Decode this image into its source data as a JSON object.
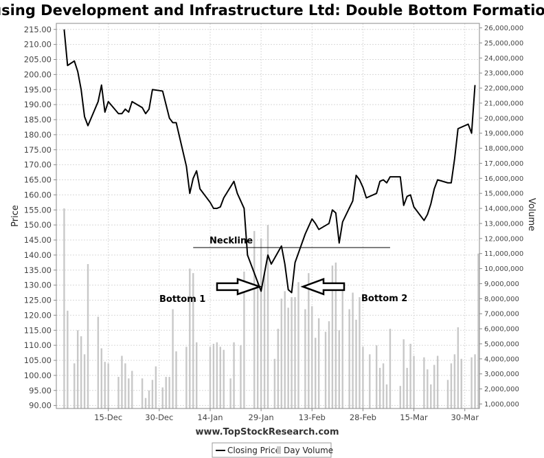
{
  "chart_data": {
    "type": "line",
    "title": "Housing Development and Infrastructure Ltd: Double Bottom Formation",
    "ylabel": "Price",
    "y2label": "Volume",
    "source": "www.TopStockResearch.com",
    "ylim": [
      89,
      217
    ],
    "y2lim": [
      700000,
      26300000
    ],
    "y_ticks": [
      "90.00",
      "95.00",
      "100.00",
      "105.00",
      "110.00",
      "115.00",
      "120.00",
      "125.00",
      "130.00",
      "135.00",
      "140.00",
      "145.00",
      "150.00",
      "155.00",
      "160.00",
      "165.00",
      "170.00",
      "175.00",
      "180.00",
      "185.00",
      "190.00",
      "195.00",
      "200.00",
      "205.00",
      "210.00",
      "215.00"
    ],
    "y2_ticks": [
      "1,000,000",
      "2,000,000",
      "3,000,000",
      "4,000,000",
      "5,000,000",
      "6,000,000",
      "7,000,000",
      "8,000,000",
      "9,000,000",
      "10,000,000",
      "11,000,000",
      "12,000,000",
      "13,000,000",
      "14,000,000",
      "15,000,000",
      "16,000,000",
      "17,000,000",
      "18,000,000",
      "19,000,000",
      "20,000,000",
      "21,000,000",
      "22,000,000",
      "23,000,000",
      "24,000,000",
      "25,000,000",
      "26,000,000"
    ],
    "x_ticks": [
      {
        "label": "15-Dec",
        "t": 15
      },
      {
        "label": "30-Dec",
        "t": 30
      },
      {
        "label": "14-Jan",
        "t": 45
      },
      {
        "label": "29-Jan",
        "t": 60
      },
      {
        "label": "13-Feb",
        "t": 75
      },
      {
        "label": "28-Feb",
        "t": 90
      },
      {
        "label": "15-Mar",
        "t": 105
      },
      {
        "label": "30-Mar",
        "t": 120
      }
    ],
    "xlim": [
      0.5,
      123.5
    ],
    "series": [
      {
        "name": "Closing Price",
        "color": "#000000",
        "points": [
          [
            2,
            215.0
          ],
          [
            3,
            203.0
          ],
          [
            5,
            204.5
          ],
          [
            6,
            201.0
          ],
          [
            7,
            195.0
          ],
          [
            8,
            186.0
          ],
          [
            9,
            183.0
          ],
          [
            12,
            191.0
          ],
          [
            13,
            196.5
          ],
          [
            14,
            187.5
          ],
          [
            15,
            191.0
          ],
          [
            18,
            187.0
          ],
          [
            19,
            187.0
          ],
          [
            20,
            188.5
          ],
          [
            21,
            187.5
          ],
          [
            22,
            191.0
          ],
          [
            25,
            189.0
          ],
          [
            26,
            187.0
          ],
          [
            27,
            188.5
          ],
          [
            28,
            195.0
          ],
          [
            31,
            194.5
          ],
          [
            32,
            190.0
          ],
          [
            33,
            185.5
          ],
          [
            34,
            184.0
          ],
          [
            35,
            184.0
          ],
          [
            38,
            169.5
          ],
          [
            39,
            160.5
          ],
          [
            40,
            165.5
          ],
          [
            41,
            168.0
          ],
          [
            42,
            162.0
          ],
          [
            45,
            157.5
          ],
          [
            46,
            155.5
          ],
          [
            47,
            155.5
          ],
          [
            48,
            156.0
          ],
          [
            49,
            159.0
          ],
          [
            52,
            164.5
          ],
          [
            53,
            160.5
          ],
          [
            55,
            155.5
          ],
          [
            56,
            140.0
          ],
          [
            59,
            131.0
          ],
          [
            60,
            128.0
          ],
          [
            62,
            140.0
          ],
          [
            63,
            137.0
          ],
          [
            66,
            143.0
          ],
          [
            67,
            137.0
          ],
          [
            68,
            128.5
          ],
          [
            69,
            127.5
          ],
          [
            70,
            137.5
          ],
          [
            73,
            147.0
          ],
          [
            74,
            149.5
          ],
          [
            75,
            152.0
          ],
          [
            76,
            150.5
          ],
          [
            77,
            148.5
          ],
          [
            80,
            150.5
          ],
          [
            81,
            155.0
          ],
          [
            82,
            154.0
          ],
          [
            83,
            144.0
          ],
          [
            84,
            151.0
          ],
          [
            87,
            158.0
          ],
          [
            88,
            166.5
          ],
          [
            89,
            165.0
          ],
          [
            90,
            162.5
          ],
          [
            91,
            159.0
          ],
          [
            94,
            160.5
          ],
          [
            95,
            164.5
          ],
          [
            96,
            165.0
          ],
          [
            97,
            164.0
          ],
          [
            98,
            166.0
          ],
          [
            101,
            166.0
          ],
          [
            102,
            156.5
          ],
          [
            103,
            159.5
          ],
          [
            104,
            160.0
          ],
          [
            105,
            156.0
          ],
          [
            108,
            151.5
          ],
          [
            109,
            153.5
          ],
          [
            110,
            157.0
          ],
          [
            111,
            162.0
          ],
          [
            112,
            165.0
          ],
          [
            115,
            164.0
          ],
          [
            116,
            164.0
          ],
          [
            117,
            172.0
          ],
          [
            118,
            182.0
          ],
          [
            121,
            183.5
          ],
          [
            122,
            180.5
          ],
          [
            123,
            196.5
          ]
        ]
      },
      {
        "name": "Day Volume",
        "color": "#c8c8c8",
        "points": [
          [
            2,
            14000000
          ],
          [
            3,
            7200000
          ],
          [
            5,
            3700000
          ],
          [
            6,
            5900000
          ],
          [
            7,
            5500000
          ],
          [
            8,
            4300000
          ],
          [
            9,
            10300000
          ],
          [
            12,
            6800000
          ],
          [
            13,
            4700000
          ],
          [
            14,
            3800000
          ],
          [
            15,
            3700000
          ],
          [
            18,
            2800000
          ],
          [
            19,
            4200000
          ],
          [
            20,
            3700000
          ],
          [
            21,
            2700000
          ],
          [
            22,
            3200000
          ],
          [
            25,
            2700000
          ],
          [
            26,
            1400000
          ],
          [
            27,
            1900000
          ],
          [
            28,
            2600000
          ],
          [
            29,
            3500000
          ],
          [
            31,
            2100000
          ],
          [
            32,
            2800000
          ],
          [
            33,
            2800000
          ],
          [
            34,
            7300000
          ],
          [
            35,
            4500000
          ],
          [
            38,
            4800000
          ],
          [
            39,
            10000000
          ],
          [
            40,
            9700000
          ],
          [
            41,
            5100000
          ],
          [
            45,
            4800000
          ],
          [
            46,
            5000000
          ],
          [
            47,
            5100000
          ],
          [
            48,
            4800000
          ],
          [
            49,
            4600000
          ],
          [
            51,
            2700000
          ],
          [
            52,
            5100000
          ],
          [
            54,
            4900000
          ],
          [
            55,
            9800000
          ],
          [
            58,
            12500000
          ],
          [
            59,
            9100000
          ],
          [
            60,
            12000000
          ],
          [
            61,
            9700000
          ],
          [
            62,
            12900000
          ],
          [
            64,
            4000000
          ],
          [
            65,
            6000000
          ],
          [
            66,
            8000000
          ],
          [
            67,
            8500000
          ],
          [
            68,
            7400000
          ],
          [
            69,
            8100000
          ],
          [
            70,
            8100000
          ],
          [
            71,
            9100000
          ],
          [
            73,
            7300000
          ],
          [
            74,
            9700000
          ],
          [
            75,
            7500000
          ],
          [
            76,
            5400000
          ],
          [
            77,
            6700000
          ],
          [
            79,
            5800000
          ],
          [
            80,
            6500000
          ],
          [
            81,
            10200000
          ],
          [
            82,
            10400000
          ],
          [
            83,
            5900000
          ],
          [
            84,
            8700000
          ],
          [
            86,
            7300000
          ],
          [
            87,
            8400000
          ],
          [
            88,
            6600000
          ],
          [
            89,
            8100000
          ],
          [
            90,
            4800000
          ],
          [
            92,
            4300000
          ],
          [
            94,
            4900000
          ],
          [
            95,
            3400000
          ],
          [
            96,
            3700000
          ],
          [
            97,
            2300000
          ],
          [
            98,
            6000000
          ],
          [
            101,
            2200000
          ],
          [
            102,
            5300000
          ],
          [
            103,
            3400000
          ],
          [
            104,
            5000000
          ],
          [
            105,
            4200000
          ],
          [
            108,
            4100000
          ],
          [
            109,
            3300000
          ],
          [
            110,
            2300000
          ],
          [
            111,
            3600000
          ],
          [
            112,
            4200000
          ],
          [
            115,
            2600000
          ],
          [
            116,
            3700000
          ],
          [
            117,
            4300000
          ],
          [
            118,
            6100000
          ],
          [
            119,
            4000000
          ],
          [
            122,
            4100000
          ],
          [
            123,
            4300000
          ],
          [
            124,
            11000000
          ]
        ]
      }
    ],
    "legend": {
      "placement": "bottom-center",
      "entries": [
        "Closing Price",
        "Day Volume"
      ]
    },
    "annotations": {
      "neckline": {
        "label": "Neckline",
        "price": 142.5,
        "t_start": 40,
        "t_end": 98
      },
      "bottom1": {
        "label": "Bottom 1",
        "arrow_price": 129.5
      },
      "bottom2": {
        "label": "Bottom 2",
        "arrow_price": 129.5
      }
    },
    "grid": true
  }
}
